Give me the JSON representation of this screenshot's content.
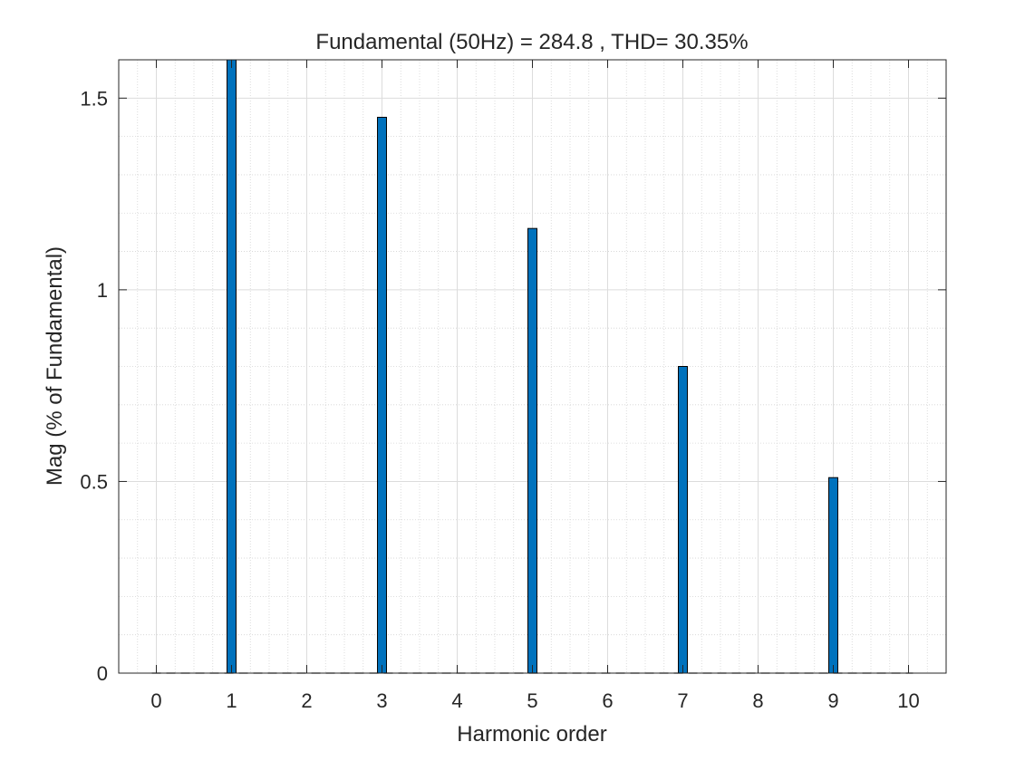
{
  "chart_data": {
    "type": "bar",
    "title": "Fundamental (50Hz) = 284.8 , THD= 30.35%",
    "xlabel": "Harmonic order",
    "ylabel": "Mag (% of Fundamental)",
    "x": [
      0,
      1,
      2,
      3,
      4,
      5,
      6,
      7,
      8,
      9,
      10
    ],
    "values": [
      0,
      1.6,
      0,
      1.45,
      0,
      1.16,
      0,
      0.8,
      0,
      0.51,
      0
    ],
    "xlim": [
      -0.5,
      10.5
    ],
    "ylim": [
      0,
      1.6
    ],
    "xticks": [
      0,
      1,
      2,
      3,
      4,
      5,
      6,
      7,
      8,
      9,
      10
    ],
    "yticks": [
      0,
      0.5,
      1,
      1.5
    ],
    "ytick_labels": [
      "0",
      "0.5",
      "1",
      "1.5"
    ],
    "grid": true,
    "minor_grid": true,
    "bar_color": "#0072BD",
    "bar_edge_color": "#000000"
  }
}
